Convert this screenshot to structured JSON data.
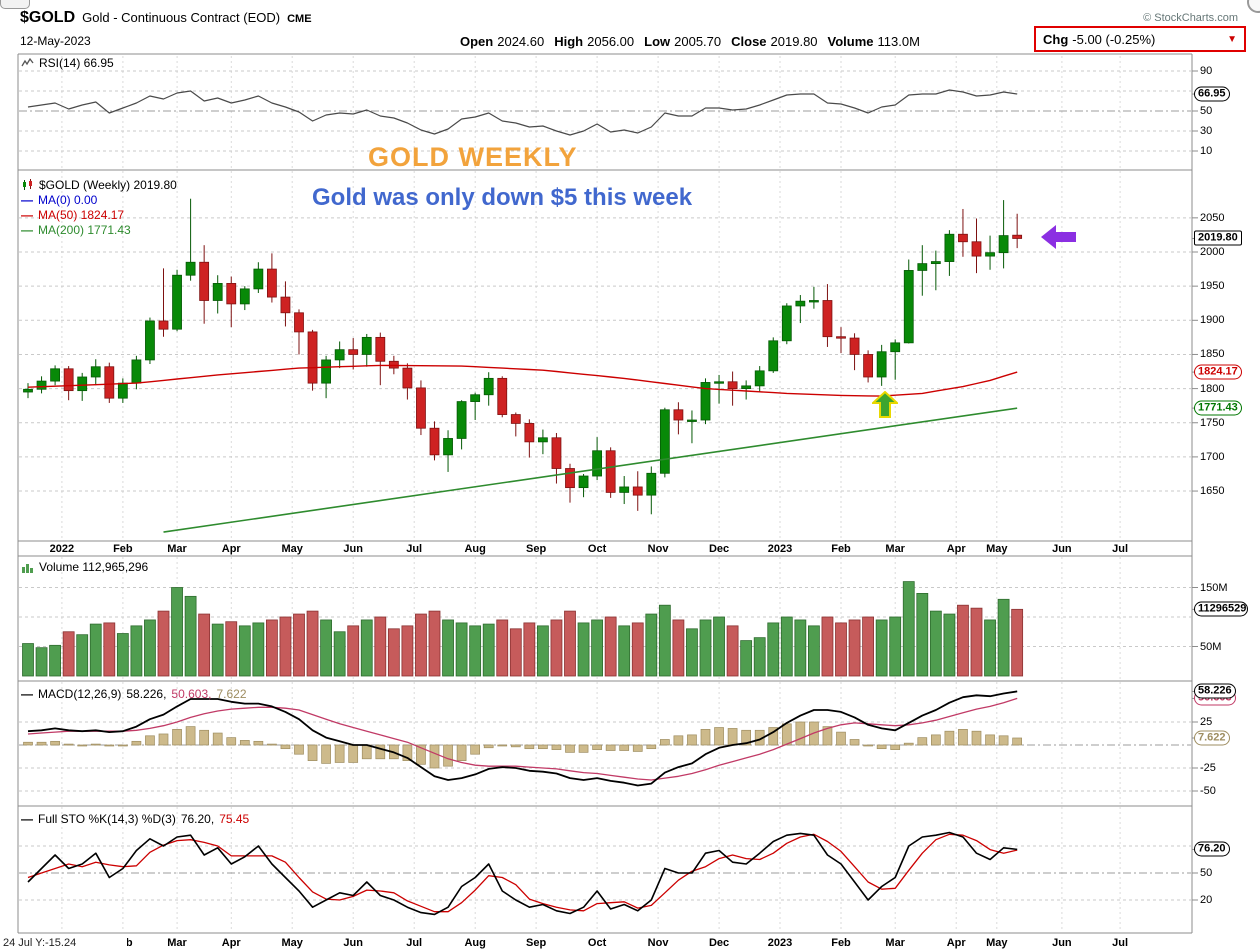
{
  "header": {
    "symbol": "$GOLD",
    "description": "Gold - Continuous Contract (EOD)",
    "exchange": "CME",
    "copyright": "© StockCharts.com",
    "date": "12-May-2023",
    "quote": {
      "open_label": "Open",
      "open": "2024.60",
      "high_label": "High",
      "high": "2056.00",
      "low_label": "Low",
      "low": "2005.70",
      "close_label": "Close",
      "close": "2019.80",
      "volume_label": "Volume",
      "volume": "113.0M",
      "chg_label": "Chg",
      "chg": "-5.00 (-0.25%)",
      "chg_dropdown_icon": "▼"
    }
  },
  "annotations": {
    "title": "GOLD WEEKLY",
    "subtitle": "Gold was only down $5 this week"
  },
  "legends": {
    "rsi": "RSI(14) 66.95",
    "price_main": "$GOLD (Weekly) 2019.80",
    "ma0": "MA(0) 0.00",
    "ma50": "MA(50) 1824.17",
    "ma200": "MA(200) 1771.43",
    "volume": "Volume 112,965,296",
    "macd_name": "MACD(12,26,9)",
    "macd_vals": [
      "58.226,",
      "50.603,",
      "7.622"
    ],
    "sto_name": "Full STO %K(14,3) %D(3)",
    "sto_vals": [
      "76.20,",
      "75.45"
    ]
  },
  "footer": {
    "left": "24 Jul Y:-15.24"
  },
  "chart_data": {
    "type": "candlestick",
    "timeframe": "weekly",
    "panels": [
      "RSI(14)",
      "price with MA(50)/MA(200)",
      "volume",
      "MACD(12,26,9)",
      "Full STO %K(14,3) %D(3)"
    ],
    "rsi_ylim": [
      0,
      100
    ],
    "sto_ylim": [
      0,
      100
    ],
    "macd_ylim": [
      -60,
      65
    ],
    "volume_ylim_m": [
      0,
      200
    ],
    "price_ylim": [
      1577,
      2120
    ],
    "candles": [
      [
        1795,
        1808,
        1786,
        1799
      ],
      [
        1799,
        1818,
        1793,
        1811
      ],
      [
        1811,
        1834,
        1805,
        1829
      ],
      [
        1829,
        1833,
        1783,
        1797
      ],
      [
        1797,
        1823,
        1782,
        1817
      ],
      [
        1817,
        1843,
        1805,
        1832
      ],
      [
        1832,
        1838,
        1779,
        1786
      ],
      [
        1786,
        1815,
        1779,
        1808
      ],
      [
        1808,
        1848,
        1799,
        1842
      ],
      [
        1842,
        1904,
        1836,
        1899
      ],
      [
        1899,
        1976,
        1876,
        1887
      ],
      [
        1887,
        1974,
        1884,
        1966
      ],
      [
        1966,
        2078,
        1958,
        1985
      ],
      [
        1985,
        2010,
        1895,
        1929
      ],
      [
        1929,
        1966,
        1910,
        1954
      ],
      [
        1954,
        1964,
        1890,
        1924
      ],
      [
        1924,
        1950,
        1915,
        1946
      ],
      [
        1946,
        1985,
        1940,
        1975
      ],
      [
        1975,
        1998,
        1926,
        1934
      ],
      [
        1934,
        1957,
        1891,
        1911
      ],
      [
        1911,
        1916,
        1850,
        1883
      ],
      [
        1883,
        1886,
        1797,
        1808
      ],
      [
        1808,
        1848,
        1786,
        1842
      ],
      [
        1842,
        1869,
        1830,
        1857
      ],
      [
        1857,
        1874,
        1828,
        1850
      ],
      [
        1850,
        1880,
        1832,
        1875
      ],
      [
        1875,
        1882,
        1805,
        1840
      ],
      [
        1840,
        1848,
        1821,
        1830
      ],
      [
        1830,
        1837,
        1784,
        1801
      ],
      [
        1801,
        1812,
        1732,
        1742
      ],
      [
        1742,
        1752,
        1695,
        1703
      ],
      [
        1703,
        1739,
        1678,
        1727
      ],
      [
        1727,
        1783,
        1711,
        1781
      ],
      [
        1781,
        1794,
        1754,
        1791
      ],
      [
        1791,
        1824,
        1775,
        1815
      ],
      [
        1815,
        1818,
        1758,
        1762
      ],
      [
        1762,
        1765,
        1730,
        1749
      ],
      [
        1749,
        1755,
        1699,
        1722
      ],
      [
        1722,
        1740,
        1704,
        1728
      ],
      [
        1728,
        1735,
        1661,
        1683
      ],
      [
        1683,
        1690,
        1633,
        1655
      ],
      [
        1655,
        1675,
        1641,
        1672
      ],
      [
        1672,
        1729,
        1666,
        1709
      ],
      [
        1709,
        1714,
        1640,
        1648
      ],
      [
        1648,
        1672,
        1631,
        1656
      ],
      [
        1656,
        1679,
        1621,
        1644
      ],
      [
        1644,
        1686,
        1616,
        1676
      ],
      [
        1676,
        1772,
        1670,
        1769
      ],
      [
        1769,
        1780,
        1733,
        1754
      ],
      [
        1754,
        1768,
        1720,
        1754
      ],
      [
        1754,
        1815,
        1748,
        1809
      ],
      [
        1809,
        1820,
        1778,
        1810
      ],
      [
        1810,
        1825,
        1775,
        1800
      ],
      [
        1800,
        1812,
        1784,
        1804
      ],
      [
        1804,
        1833,
        1795,
        1826
      ],
      [
        1826,
        1875,
        1823,
        1870
      ],
      [
        1870,
        1925,
        1865,
        1921
      ],
      [
        1921,
        1937,
        1896,
        1928
      ],
      [
        1928,
        1949,
        1917,
        1929
      ],
      [
        1929,
        1953,
        1861,
        1876
      ],
      [
        1876,
        1890,
        1852,
        1874
      ],
      [
        1874,
        1881,
        1827,
        1850
      ],
      [
        1850,
        1856,
        1809,
        1817
      ],
      [
        1817,
        1864,
        1804,
        1854
      ],
      [
        1854,
        1872,
        1813,
        1867
      ],
      [
        1867,
        1989,
        1866,
        1973
      ],
      [
        1973,
        2010,
        1936,
        1983
      ],
      [
        1983,
        2002,
        1944,
        1986
      ],
      [
        1986,
        2032,
        1965,
        2026
      ],
      [
        2026,
        2063,
        1993,
        2015
      ],
      [
        2015,
        2049,
        1969,
        1994
      ],
      [
        1994,
        2024,
        1974,
        1999
      ],
      [
        1999,
        2076,
        1976,
        2024
      ],
      [
        2024.6,
        2056,
        2005.7,
        2019.8
      ]
    ],
    "volume_m": [
      55,
      48,
      52,
      75,
      70,
      88,
      90,
      72,
      85,
      95,
      110,
      150,
      135,
      105,
      88,
      92,
      85,
      90,
      95,
      100,
      105,
      110,
      95,
      75,
      85,
      95,
      100,
      80,
      85,
      105,
      110,
      95,
      90,
      85,
      88,
      95,
      80,
      90,
      85,
      95,
      110,
      90,
      95,
      100,
      85,
      90,
      105,
      120,
      95,
      80,
      95,
      100,
      85,
      60,
      65,
      90,
      100,
      95,
      85,
      100,
      90,
      95,
      100,
      95,
      100,
      160,
      140,
      110,
      105,
      120,
      115,
      95,
      130,
      113
    ],
    "rsi": [
      54,
      56,
      58,
      52,
      56,
      59,
      48,
      53,
      58,
      65,
      62,
      68,
      70,
      60,
      63,
      58,
      61,
      65,
      58,
      54,
      49,
      40,
      46,
      48,
      47,
      51,
      45,
      43,
      38,
      31,
      27,
      32,
      42,
      44,
      48,
      40,
      38,
      34,
      35,
      30,
      26,
      30,
      37,
      29,
      31,
      28,
      34,
      48,
      45,
      45,
      53,
      53,
      51,
      52,
      56,
      61,
      66,
      67,
      67,
      58,
      57,
      53,
      48,
      54,
      56,
      66,
      67,
      67,
      71,
      69,
      65,
      66,
      69,
      66.95
    ],
    "macd": [
      15,
      16,
      18,
      16,
      15,
      16,
      14,
      15,
      20,
      28,
      33,
      42,
      50,
      50,
      50,
      47,
      45,
      45,
      42,
      36,
      28,
      16,
      8,
      4,
      0,
      0,
      -4,
      -8,
      -14,
      -24,
      -34,
      -38,
      -36,
      -32,
      -26,
      -24,
      -25,
      -28,
      -29,
      -31,
      -36,
      -38,
      -36,
      -39,
      -41,
      -44,
      -42,
      -30,
      -24,
      -20,
      -10,
      -3,
      0,
      2,
      6,
      14,
      24,
      32,
      38,
      38,
      36,
      30,
      22,
      18,
      16,
      24,
      32,
      38,
      46,
      52,
      54,
      53,
      56,
      58.226
    ],
    "macd_signal": [
      12,
      13,
      14,
      15,
      15,
      15,
      15,
      15,
      16,
      18,
      21,
      25,
      30,
      34,
      37,
      39,
      40,
      41,
      41,
      40,
      38,
      33,
      28,
      23,
      19,
      15,
      11,
      7,
      3,
      -3,
      -9,
      -15,
      -19,
      -22,
      -23,
      -23,
      -23,
      -24,
      -25,
      -26,
      -28,
      -30,
      -31,
      -33,
      -35,
      -37,
      -38,
      -36,
      -34,
      -31,
      -27,
      -22,
      -18,
      -14,
      -10,
      -5,
      1,
      7,
      13,
      18,
      22,
      24,
      23,
      22,
      21,
      22,
      24,
      27,
      31,
      35,
      39,
      42,
      46,
      50.603
    ],
    "sto_k": [
      40,
      55,
      70,
      55,
      60,
      72,
      45,
      55,
      75,
      88,
      80,
      90,
      92,
      70,
      78,
      60,
      68,
      80,
      60,
      45,
      30,
      12,
      20,
      28,
      25,
      40,
      25,
      20,
      12,
      6,
      4,
      12,
      35,
      45,
      60,
      30,
      20,
      12,
      15,
      8,
      5,
      12,
      30,
      10,
      15,
      8,
      20,
      55,
      50,
      50,
      72,
      75,
      62,
      60,
      72,
      85,
      92,
      94,
      92,
      70,
      60,
      40,
      20,
      35,
      45,
      80,
      90,
      92,
      95,
      90,
      72,
      65,
      78,
      76.2
    ],
    "sto_d": [
      45,
      50,
      55,
      60,
      57,
      62,
      59,
      57,
      58,
      73,
      81,
      86,
      87,
      84,
      80,
      69,
      69,
      69,
      69,
      62,
      45,
      29,
      21,
      20,
      24,
      31,
      30,
      28,
      19,
      13,
      7,
      7,
      17,
      31,
      47,
      45,
      37,
      21,
      16,
      12,
      9,
      8,
      16,
      17,
      18,
      11,
      14,
      28,
      42,
      52,
      57,
      66,
      70,
      66,
      65,
      72,
      83,
      90,
      93,
      85,
      74,
      57,
      40,
      32,
      33,
      53,
      72,
      87,
      93,
      92,
      86,
      76,
      72,
      75.45
    ],
    "ma50_points": [
      [
        0,
        1802
      ],
      [
        8,
        1808
      ],
      [
        14,
        1820
      ],
      [
        20,
        1830
      ],
      [
        26,
        1834
      ],
      [
        32,
        1833
      ],
      [
        38,
        1827
      ],
      [
        44,
        1815
      ],
      [
        50,
        1800
      ],
      [
        56,
        1793
      ],
      [
        60,
        1790
      ],
      [
        63,
        1789
      ],
      [
        66,
        1793
      ],
      [
        69,
        1803
      ],
      [
        71,
        1812
      ],
      [
        73,
        1824.17
      ]
    ],
    "ma200_linear": {
      "from_index": 10,
      "from_value": 1590,
      "to_index": 73,
      "to_value": 1771.43
    },
    "axes": {
      "price_ticks": [
        2050,
        2000,
        1950,
        1900,
        1850,
        1800,
        1750,
        1700,
        1650
      ],
      "rsi_ticks": [
        90,
        50,
        30,
        10
      ],
      "volume_ticks": [
        {
          "label": "150M",
          "value": 150
        },
        {
          "label": "50M",
          "value": 50
        }
      ],
      "macd_ticks": [
        {
          "label": "25",
          "value": 25
        },
        {
          "label": "-25",
          "value": -25
        },
        {
          "label": "-50",
          "value": -50
        }
      ],
      "sto_ticks": [
        {
          "label": "50",
          "value": 50
        },
        {
          "label": "20",
          "value": 20
        }
      ],
      "months": [
        {
          "label": "2022",
          "week": 2.5
        },
        {
          "label": "Feb",
          "week": 7
        },
        {
          "label": "Mar",
          "week": 11
        },
        {
          "label": "Apr",
          "week": 15
        },
        {
          "label": "May",
          "week": 19.5
        },
        {
          "label": "Jun",
          "week": 24
        },
        {
          "label": "Jul",
          "week": 28.5
        },
        {
          "label": "Aug",
          "week": 33
        },
        {
          "label": "Sep",
          "week": 37.5
        },
        {
          "label": "Oct",
          "week": 42
        },
        {
          "label": "Nov",
          "week": 46.5
        },
        {
          "label": "Dec",
          "week": 51
        },
        {
          "label": "2023",
          "week": 55.5
        },
        {
          "label": "Feb",
          "week": 60
        },
        {
          "label": "Mar",
          "week": 64
        },
        {
          "label": "Apr",
          "week": 68.5
        },
        {
          "label": "May",
          "week": 71.5
        },
        {
          "label": "Jun",
          "week": 76.3
        },
        {
          "label": "Jul",
          "week": 80.6
        }
      ]
    },
    "callouts": {
      "rsi": {
        "label": "66.95",
        "value": 66.95,
        "color": "#000000"
      },
      "price": [
        {
          "label": "2019.80",
          "value": 2019.8,
          "color": "#000000",
          "style": "rect"
        },
        {
          "label": "1824.17",
          "value": 1824.17,
          "color": "#CC0000"
        },
        {
          "label": "1771.43",
          "value": 1771.43,
          "color": "#007700"
        }
      ],
      "volume": {
        "label": "112965296",
        "value": 112.97,
        "color": "#000000"
      },
      "macd": [
        {
          "label": "58.226",
          "value": 58.226,
          "color": "#000000"
        },
        {
          "label": "50.603",
          "value": 50.603,
          "color": "#C13A66"
        },
        {
          "label": "7.622",
          "value": 7.622,
          "color": "#9E8D60"
        }
      ],
      "sto": {
        "label": "76.20",
        "value": 76.2,
        "color": "#000000"
      }
    },
    "colors": {
      "up": "#088908",
      "up_dark": "#055905",
      "down": "#CE2222",
      "down_dark": "#7E1111",
      "vol_up": "#4F9D4F",
      "vol_up_dark": "#2E6B2E",
      "vol_down": "#C65B5B",
      "vol_down_dark": "#8A3232",
      "ma0": "#0000CC",
      "ma50": "#CC0000",
      "ma200": "#2E8B2E",
      "rsi": "#4A4A4A",
      "macd_line": "#000000",
      "macd_signal": "#C13A66",
      "macd_hist": "#CDBA8B",
      "macd_hist_dark": "#9E8D60",
      "sto_k": "#000000",
      "sto_d": "#CC0000",
      "annotation_orange": "#F2A33C",
      "annotation_blue": "#4168CE",
      "arrow_purple": "#8B2FE2",
      "arrow_green": "#3DA52F",
      "arrow_green_border": "#E8D800",
      "chg_box": "#E00000"
    }
  }
}
